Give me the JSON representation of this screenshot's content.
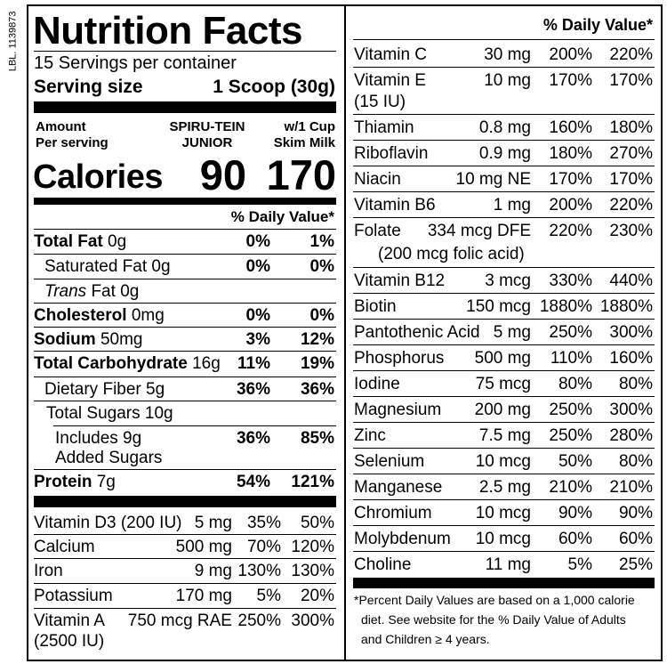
{
  "label": {
    "side_code": "LBL. 1139873",
    "title": "Nutrition Facts",
    "servings": "15 Servings per container",
    "serving_size_label": "Serving size",
    "serving_size": "1 Scoop (30g)",
    "amount_per_serving": [
      "Amount",
      "Per serving"
    ],
    "column_1": [
      "SPIRU-TEIN",
      "JUNIOR"
    ],
    "column_2": [
      "w/1 Cup",
      "Skim Milk"
    ],
    "calories_label": "Calories",
    "calories": [
      "90",
      "170"
    ],
    "daily_value_header": "% Daily Value*",
    "nutrients": [
      {
        "name": "Total Fat",
        "amount": "0g",
        "dv": [
          "0%",
          "1%"
        ]
      },
      {
        "name": "Saturated Fat",
        "amount": "0g",
        "dv": [
          "0%",
          "0%"
        ]
      },
      {
        "name_italic": "Trans",
        "name": "Fat",
        "amount": "0g"
      },
      {
        "name": "Cholesterol",
        "amount": "0mg",
        "dv": [
          "0%",
          "0%"
        ]
      },
      {
        "name": "Sodium",
        "amount": "50mg",
        "dv": [
          "3%",
          "12%"
        ]
      },
      {
        "name": "Total Carbohydrate",
        "amount": "16g",
        "dv": [
          "11%",
          "19%"
        ]
      },
      {
        "name": "Dietary Fiber",
        "amount": "5g",
        "dv": [
          "36%",
          "36%"
        ]
      },
      {
        "name": "Total Sugars",
        "amount": "10g"
      },
      {
        "name": "Includes 9g",
        "name_line2": "Added Sugars",
        "dv": [
          "36%",
          "85%"
        ]
      },
      {
        "name": "Protein",
        "amount": "7g",
        "dv": [
          "54%",
          "121%"
        ]
      }
    ],
    "vitamins_minerals": [
      {
        "name": "Vitamin D3 (200 IU)",
        "amount": "5 mg",
        "dv": [
          "35%",
          "50%"
        ]
      },
      {
        "name": "Calcium",
        "amount": "500 mg",
        "dv": [
          "70%",
          "120%"
        ]
      },
      {
        "name": "Iron",
        "amount": "9 mg",
        "dv": [
          "130%",
          "130%"
        ]
      },
      {
        "name": "Potassium",
        "amount": "170 mg",
        "dv": [
          "5%",
          "20%"
        ]
      },
      {
        "name": "Vitamin A",
        "name_line2": "(2500 IU)",
        "amount": "750 mcg RAE",
        "dv": [
          "250%",
          "300%"
        ]
      }
    ]
  },
  "right": {
    "daily_value_header": "% Daily Value*",
    "vitamins_minerals": [
      {
        "name": "Vitamin C",
        "amount": "30 mg",
        "dv": [
          "200%",
          "220%"
        ]
      },
      {
        "name": "Vitamin E",
        "name_line2": "(15 IU)",
        "amount": "10 mg",
        "dv": [
          "170%",
          "170%"
        ]
      },
      {
        "name": "Thiamin",
        "amount": "0.8 mg",
        "dv": [
          "160%",
          "180%"
        ]
      },
      {
        "name": "Riboflavin",
        "amount": "0.9 mg",
        "dv": [
          "180%",
          "270%"
        ]
      },
      {
        "name": "Niacin",
        "amount": "10 mg NE",
        "dv": [
          "170%",
          "170%"
        ]
      },
      {
        "name": "Vitamin B6",
        "amount": "1 mg",
        "dv": [
          "200%",
          "220%"
        ]
      },
      {
        "name": "Folate",
        "amount": "334 mcg DFE",
        "note": "(200 mcg folic acid)",
        "dv": [
          "220%",
          "230%"
        ]
      },
      {
        "name": "Vitamin B12",
        "amount": "3 mcg",
        "dv": [
          "330%",
          "440%"
        ]
      },
      {
        "name": "Biotin",
        "amount": "150 mcg",
        "dv": [
          "1880%",
          "1880%"
        ]
      },
      {
        "name": "Pantothenic Acid",
        "amount": "5 mg",
        "dv": [
          "250%",
          "300%"
        ]
      },
      {
        "name": "Phosphorus",
        "amount": "500 mg",
        "dv": [
          "110%",
          "160%"
        ]
      },
      {
        "name": "Iodine",
        "amount": "75 mcg",
        "dv": [
          "80%",
          "80%"
        ]
      },
      {
        "name": "Magnesium",
        "amount": "200 mg",
        "dv": [
          "250%",
          "300%"
        ]
      },
      {
        "name": "Zinc",
        "amount": "7.5 mg",
        "dv": [
          "250%",
          "280%"
        ]
      },
      {
        "name": "Selenium",
        "amount": "10 mcg",
        "dv": [
          "50%",
          "80%"
        ]
      },
      {
        "name": "Manganese",
        "amount": "2.5 mg",
        "dv": [
          "210%",
          "210%"
        ]
      },
      {
        "name": "Chromium",
        "amount": "10 mcg",
        "dv": [
          "90%",
          "90%"
        ]
      },
      {
        "name": "Molybdenum",
        "amount": "10 mcg",
        "dv": [
          "60%",
          "60%"
        ]
      },
      {
        "name": "Choline",
        "amount": "11 mg",
        "dv": [
          "5%",
          "25%"
        ]
      }
    ],
    "footnote": [
      "*Percent Daily Values are based on a 1,000 calorie",
      "diet. See website for the % Daily Value of Adults",
      "and Children ≥ 4 years."
    ]
  }
}
